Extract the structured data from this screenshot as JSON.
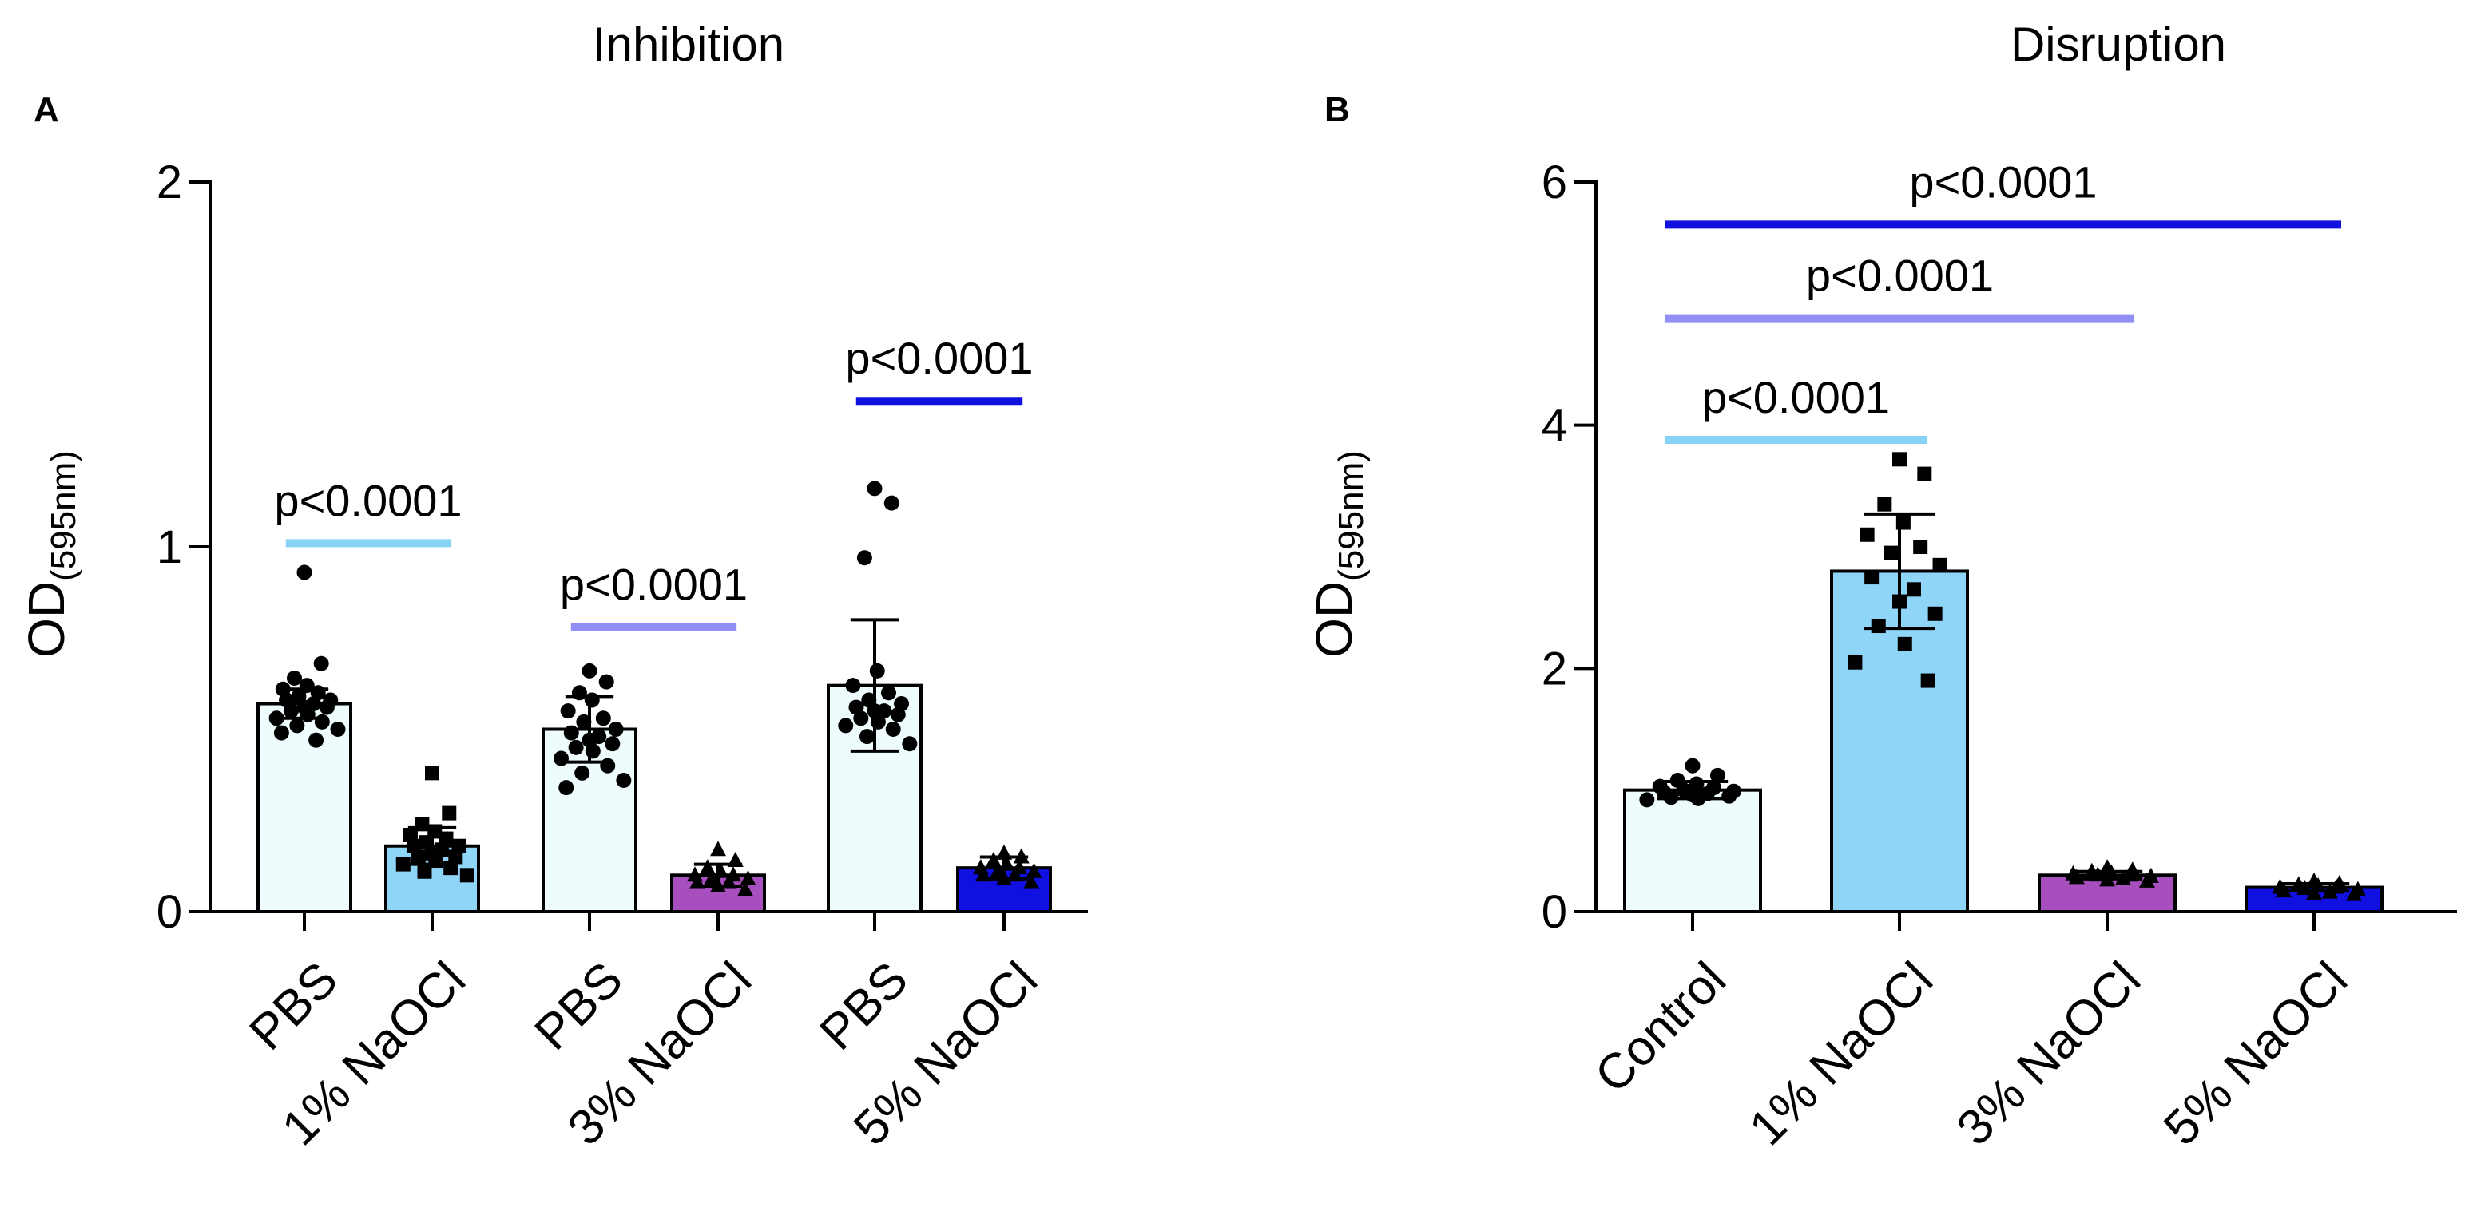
{
  "chart_data": [
    {
      "panel": "A",
      "type": "bar",
      "title": "Inhibition",
      "ylabel": "OD",
      "ylabel_sub": "(595nm)",
      "ylim": [
        0,
        2
      ],
      "yticks": [
        0,
        1,
        2
      ],
      "categories": [
        "PBS",
        "1% NaOCl",
        "PBS",
        "3% NaOCl",
        "PBS",
        "5% NaOCl"
      ],
      "values": [
        0.57,
        0.18,
        0.5,
        0.1,
        0.62,
        0.12
      ],
      "errors": [
        0.04,
        0.05,
        0.09,
        0.03,
        0.18,
        0.03
      ],
      "bar_colors": [
        "#eefcfd",
        "#8fd5f7",
        "#eefcfd",
        "#a84fbf",
        "#eefcfd",
        "#1010e0"
      ],
      "markers": [
        "circle",
        "square",
        "circle",
        "triangle",
        "circle",
        "triangle"
      ],
      "points": [
        [
          0.93,
          0.68,
          0.64,
          0.62,
          0.61,
          0.6,
          0.59,
          0.58,
          0.58,
          0.57,
          0.56,
          0.56,
          0.55,
          0.54,
          0.53,
          0.52,
          0.51,
          0.5,
          0.49,
          0.47
        ],
        [
          0.38,
          0.27,
          0.24,
          0.22,
          0.21,
          0.2,
          0.19,
          0.18,
          0.18,
          0.17,
          0.16,
          0.15,
          0.15,
          0.14,
          0.13,
          0.12,
          0.11,
          0.1
        ],
        [
          0.66,
          0.63,
          0.6,
          0.58,
          0.55,
          0.53,
          0.52,
          0.5,
          0.49,
          0.48,
          0.47,
          0.46,
          0.45,
          0.44,
          0.42,
          0.4,
          0.38,
          0.36,
          0.34
        ],
        [
          0.17,
          0.14,
          0.12,
          0.11,
          0.1,
          0.1,
          0.09,
          0.09,
          0.08,
          0.08,
          0.07,
          0.06
        ],
        [
          1.16,
          1.12,
          0.97,
          0.66,
          0.62,
          0.6,
          0.58,
          0.57,
          0.56,
          0.55,
          0.55,
          0.54,
          0.53,
          0.52,
          0.51,
          0.5,
          0.48,
          0.46
        ],
        [
          0.16,
          0.15,
          0.14,
          0.13,
          0.12,
          0.12,
          0.11,
          0.11,
          0.1,
          0.1,
          0.09,
          0.08
        ]
      ],
      "comparisons": [
        {
          "from": 0,
          "to": 1,
          "y": 1.01,
          "label": "p<0.0001",
          "color": "#87d3f5"
        },
        {
          "from": 2,
          "to": 3,
          "y": 0.78,
          "label": "p<0.0001",
          "color": "#8f8ff5"
        },
        {
          "from": 4,
          "to": 5,
          "y": 1.4,
          "label": "p<0.0001",
          "color": "#1010e0"
        }
      ]
    },
    {
      "panel": "B",
      "type": "bar",
      "title": "Disruption",
      "ylabel": "OD",
      "ylabel_sub": "(595nm)",
      "ylim": [
        0,
        6
      ],
      "yticks": [
        0,
        2,
        4,
        6
      ],
      "categories": [
        "Control",
        "1% NaOCl",
        "3% NaOCl",
        "5% NaOCl"
      ],
      "values": [
        1.0,
        2.8,
        0.3,
        0.2
      ],
      "errors": [
        0.07,
        0.47,
        0.03,
        0.03
      ],
      "bar_colors": [
        "#eefcfd",
        "#8fd5f7",
        "#a84fbf",
        "#1010e0"
      ],
      "markers": [
        "circle",
        "square",
        "triangle",
        "triangle"
      ],
      "points": [
        [
          1.2,
          1.12,
          1.08,
          1.05,
          1.03,
          1.02,
          1.0,
          0.99,
          0.98,
          0.97,
          0.96,
          0.95,
          0.94,
          0.93,
          0.92
        ],
        [
          3.72,
          3.6,
          3.35,
          3.2,
          3.1,
          3.0,
          2.95,
          2.85,
          2.75,
          2.65,
          2.55,
          2.45,
          2.35,
          2.2,
          2.05,
          1.9
        ],
        [
          0.36,
          0.34,
          0.33,
          0.32,
          0.31,
          0.3,
          0.3,
          0.29,
          0.28,
          0.27,
          0.26,
          0.25
        ],
        [
          0.25,
          0.23,
          0.22,
          0.21,
          0.2,
          0.2,
          0.19,
          0.18,
          0.17,
          0.16,
          0.15,
          0.14
        ]
      ],
      "comparisons": [
        {
          "from": 0,
          "to": 1,
          "y": 3.88,
          "label": "p<0.0001",
          "color": "#87d3f5"
        },
        {
          "from": 0,
          "to": 2,
          "y": 4.88,
          "label": "p<0.0001",
          "color": "#8f8ff5"
        },
        {
          "from": 0,
          "to": 3,
          "y": 5.65,
          "label": "p<0.0001",
          "color": "#1010e0"
        }
      ]
    }
  ]
}
